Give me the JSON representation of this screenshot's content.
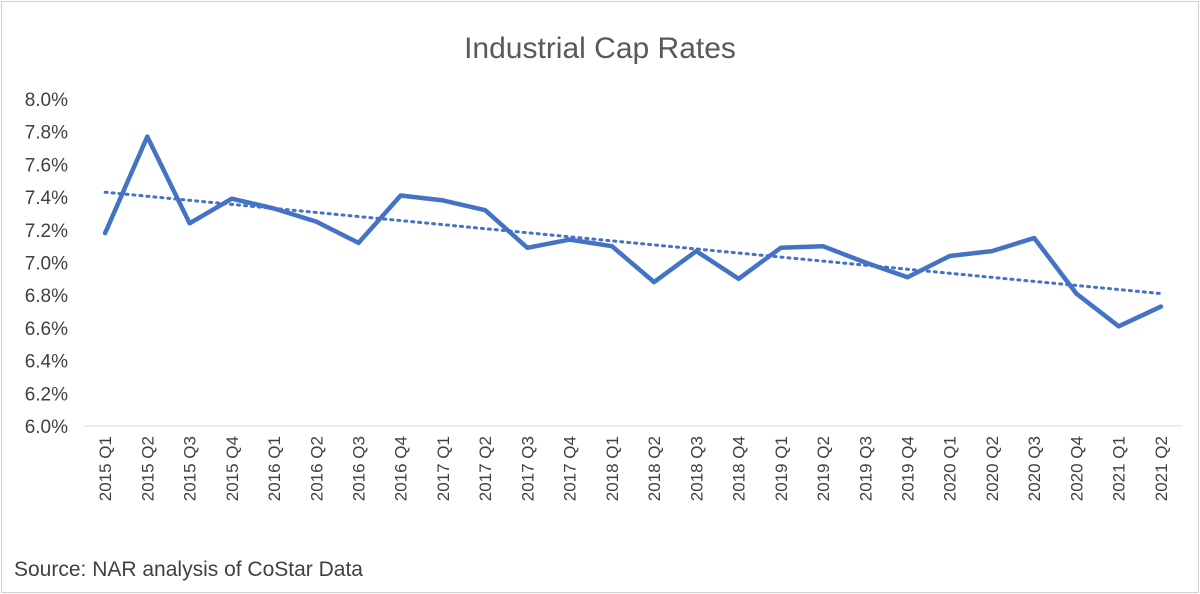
{
  "chart_data": {
    "type": "line",
    "title": "Industrial Cap Rates",
    "categories": [
      "2015 Q1",
      "2015 Q2",
      "2015 Q3",
      "2015 Q4",
      "2016 Q1",
      "2016 Q2",
      "2016 Q3",
      "2016 Q4",
      "2017 Q1",
      "2017 Q2",
      "2017 Q3",
      "2017 Q4",
      "2018 Q1",
      "2018 Q2",
      "2018 Q3",
      "2018 Q4",
      "2019 Q1",
      "2019 Q2",
      "2019 Q3",
      "2019 Q4",
      "2020 Q1",
      "2020 Q2",
      "2020 Q3",
      "2020 Q4",
      "2021 Q1",
      "2021 Q2"
    ],
    "series": [
      {
        "values": [
          7.18,
          7.77,
          7.24,
          7.39,
          7.33,
          7.25,
          7.12,
          7.41,
          7.38,
          7.32,
          7.09,
          7.14,
          7.1,
          6.88,
          7.07,
          6.9,
          7.09,
          7.1,
          7.0,
          6.91,
          7.04,
          7.07,
          7.15,
          6.81,
          6.61,
          6.73
        ],
        "color": "#4472C4"
      }
    ],
    "trendline": {
      "style": "dotted",
      "start": 7.43,
      "end": 6.81,
      "color": "#4472C4"
    },
    "ylim": [
      6.0,
      8.0
    ],
    "yticks": [
      "6.0%",
      "6.2%",
      "6.4%",
      "6.6%",
      "6.8%",
      "7.0%",
      "7.2%",
      "7.4%",
      "7.6%",
      "7.8%",
      "8.0%"
    ],
    "grid": false,
    "legend": "none"
  },
  "source": "Source: NAR analysis of CoStar Data"
}
